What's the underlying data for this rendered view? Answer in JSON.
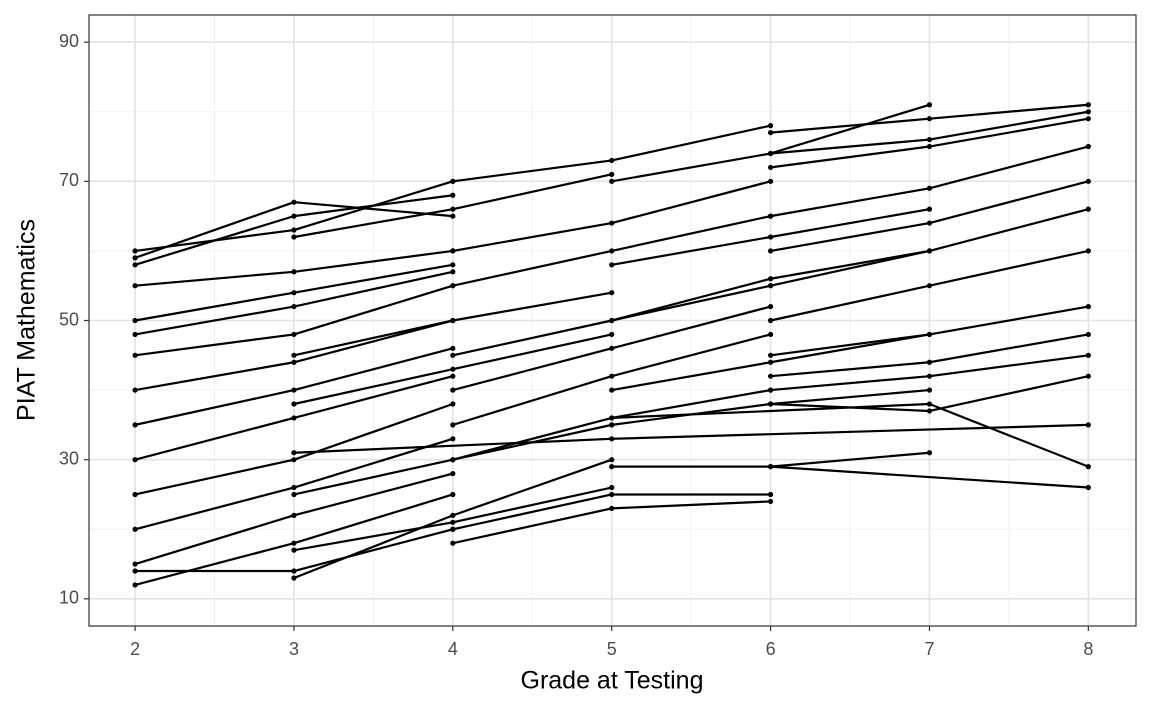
{
  "chart_data": {
    "type": "line",
    "x_label": "Grade at Testing",
    "y_label": "PIAT Mathematics",
    "color": "#000000",
    "grid": true,
    "xlim": [
      1.71,
      8.3
    ],
    "ylim": [
      6.1,
      93.9
    ],
    "xticks": [
      2,
      3,
      4,
      5,
      6,
      7,
      8
    ],
    "yticks": [
      10,
      30,
      50,
      70,
      90
    ],
    "series": [
      {
        "x": [
          2,
          3,
          4
        ],
        "values": [
          60,
          63,
          70
        ]
      },
      {
        "x": [
          2,
          3,
          4
        ],
        "values": [
          59,
          67,
          65
        ]
      },
      {
        "x": [
          2,
          3,
          4
        ],
        "values": [
          58,
          65,
          68
        ]
      },
      {
        "x": [
          3,
          4,
          5
        ],
        "values": [
          62,
          66,
          71
        ]
      },
      {
        "x": [
          4,
          5,
          6
        ],
        "values": [
          70,
          73,
          78
        ]
      },
      {
        "x": [
          5,
          6,
          7
        ],
        "values": [
          70,
          74,
          81
        ]
      },
      {
        "x": [
          6,
          7,
          8
        ],
        "values": [
          77,
          79,
          81
        ]
      },
      {
        "x": [
          6,
          7,
          8
        ],
        "values": [
          74,
          76,
          80
        ]
      },
      {
        "x": [
          6,
          7,
          8
        ],
        "values": [
          72,
          75,
          79
        ]
      },
      {
        "x": [
          2,
          3,
          4
        ],
        "values": [
          55,
          57,
          60
        ]
      },
      {
        "x": [
          2,
          3,
          4
        ],
        "values": [
          50,
          54,
          58
        ]
      },
      {
        "x": [
          2,
          3,
          4
        ],
        "values": [
          45,
          48,
          55
        ]
      },
      {
        "x": [
          2,
          3,
          4
        ],
        "values": [
          40,
          44,
          50
        ]
      },
      {
        "x": [
          2,
          3,
          4
        ],
        "values": [
          35,
          40,
          46
        ]
      },
      {
        "x": [
          2,
          3,
          4
        ],
        "values": [
          30,
          36,
          42
        ]
      },
      {
        "x": [
          2,
          3,
          4
        ],
        "values": [
          25,
          30,
          38
        ]
      },
      {
        "x": [
          2,
          3,
          4
        ],
        "values": [
          20,
          26,
          33
        ]
      },
      {
        "x": [
          2,
          3,
          4
        ],
        "values": [
          15,
          22,
          28
        ]
      },
      {
        "x": [
          2,
          3,
          4
        ],
        "values": [
          12,
          18,
          25
        ]
      },
      {
        "x": [
          2,
          3,
          4
        ],
        "values": [
          14,
          14,
          20
        ]
      },
      {
        "x": [
          3,
          4,
          5
        ],
        "values": [
          13,
          22,
          30
        ]
      },
      {
        "x": [
          4,
          5,
          6
        ],
        "values": [
          18,
          23,
          24
        ]
      },
      {
        "x": [
          4,
          5,
          6
        ],
        "values": [
          20,
          25,
          25
        ]
      },
      {
        "x": [
          3,
          4,
          5
        ],
        "values": [
          17,
          21,
          26
        ]
      },
      {
        "x": [
          4,
          5,
          6
        ],
        "values": [
          45,
          50,
          55
        ]
      },
      {
        "x": [
          4,
          5,
          6
        ],
        "values": [
          40,
          46,
          52
        ]
      },
      {
        "x": [
          4,
          5,
          6
        ],
        "values": [
          35,
          42,
          48
        ]
      },
      {
        "x": [
          4,
          5,
          6
        ],
        "values": [
          30,
          36,
          40
        ]
      },
      {
        "x": [
          4,
          5,
          6
        ],
        "values": [
          55,
          60,
          65
        ]
      },
      {
        "x": [
          4,
          5,
          6
        ],
        "values": [
          60,
          64,
          70
        ]
      },
      {
        "x": [
          5,
          6,
          7
        ],
        "values": [
          29,
          29,
          31
        ]
      },
      {
        "x": [
          6,
          8
        ],
        "values": [
          29,
          26
        ]
      },
      {
        "x": [
          5,
          7,
          8
        ],
        "values": [
          36,
          38,
          29
        ]
      },
      {
        "x": [
          3,
          5,
          8
        ],
        "values": [
          31,
          33,
          35
        ]
      },
      {
        "x": [
          6,
          7,
          8
        ],
        "values": [
          40,
          42,
          45
        ]
      },
      {
        "x": [
          6,
          7,
          8
        ],
        "values": [
          45,
          48,
          52
        ]
      },
      {
        "x": [
          6,
          7,
          8
        ],
        "values": [
          50,
          55,
          60
        ]
      },
      {
        "x": [
          6,
          7,
          8
        ],
        "values": [
          55,
          60,
          66
        ]
      },
      {
        "x": [
          6,
          7,
          8
        ],
        "values": [
          60,
          64,
          70
        ]
      },
      {
        "x": [
          6,
          7,
          8
        ],
        "values": [
          65,
          69,
          75
        ]
      },
      {
        "x": [
          5,
          6,
          7
        ],
        "values": [
          40,
          44,
          48
        ]
      },
      {
        "x": [
          5,
          6,
          7
        ],
        "values": [
          50,
          56,
          60
        ]
      },
      {
        "x": [
          5,
          6,
          7
        ],
        "values": [
          58,
          62,
          66
        ]
      },
      {
        "x": [
          6,
          7,
          8
        ],
        "values": [
          38,
          37,
          42
        ]
      },
      {
        "x": [
          6,
          7,
          8
        ],
        "values": [
          42,
          44,
          48
        ]
      },
      {
        "x": [
          3,
          4,
          5
        ],
        "values": [
          45,
          50,
          54
        ]
      },
      {
        "x": [
          3,
          4,
          5
        ],
        "values": [
          38,
          43,
          48
        ]
      },
      {
        "x": [
          3,
          4,
          5
        ],
        "values": [
          25,
          30,
          35
        ]
      },
      {
        "x": [
          5,
          6,
          7
        ],
        "values": [
          35,
          38,
          40
        ]
      },
      {
        "x": [
          2,
          3,
          4
        ],
        "values": [
          48,
          52,
          57
        ]
      }
    ]
  }
}
